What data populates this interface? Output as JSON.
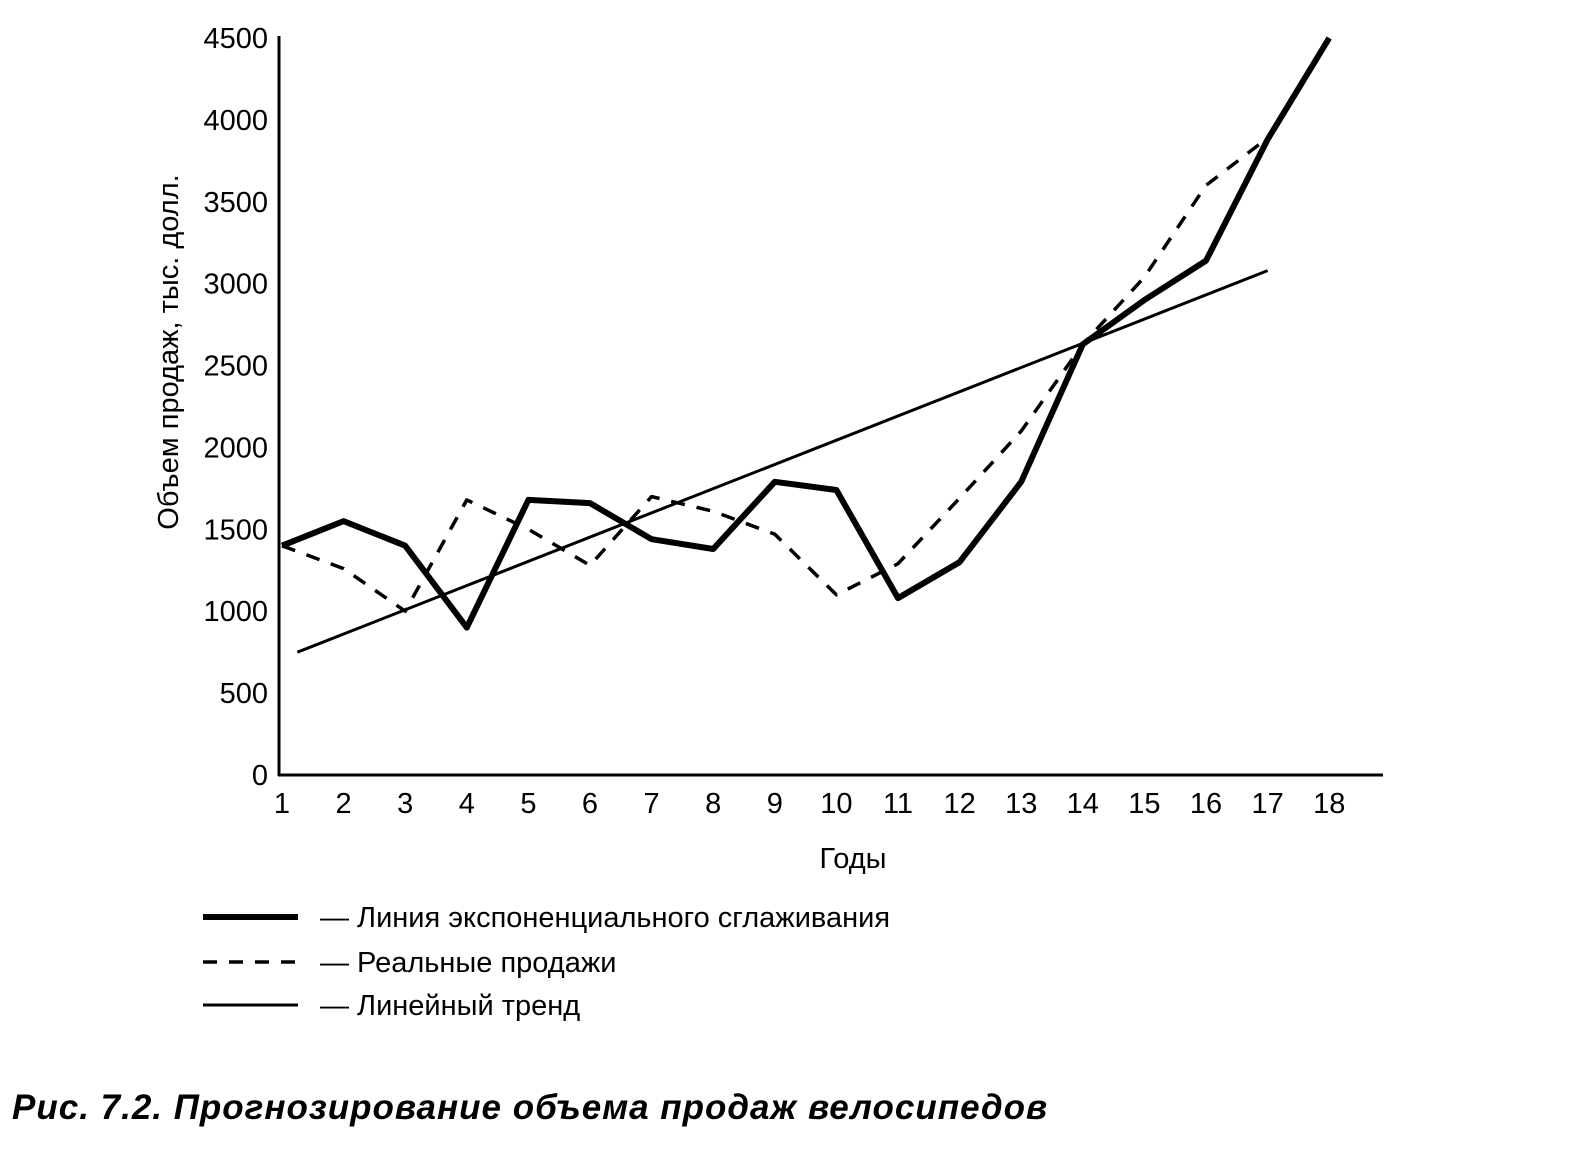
{
  "chart_data": {
    "type": "line",
    "title": "Рис. 7.2. Прогнозирование объема продаж велосипедов",
    "xlabel": "Годы",
    "ylabel": "Объем продаж, тыс. долл.",
    "ylim": [
      0,
      4500
    ],
    "yticks": [
      "0",
      "500",
      "1000",
      "1500",
      "2000",
      "2500",
      "3000",
      "3500",
      "4000",
      "4500"
    ],
    "ytick_values": [
      0,
      500,
      1000,
      1500,
      2000,
      2500,
      3000,
      3500,
      4000,
      4500
    ],
    "x": [
      1,
      2,
      3,
      4,
      5,
      6,
      7,
      8,
      9,
      10,
      11,
      12,
      13,
      14,
      15,
      16,
      17,
      18
    ],
    "xticks": [
      "1",
      "2",
      "3",
      "4",
      "5",
      "6",
      "7",
      "8",
      "9",
      "10",
      "11",
      "12",
      "13",
      "14",
      "15",
      "16",
      "17",
      "18"
    ],
    "grid": false,
    "legend_placement": "bottom",
    "series": [
      {
        "name": "— Линия экспоненциального сглаживания",
        "style": "thick",
        "x": [
          1,
          2,
          3,
          4,
          5,
          6,
          7,
          8,
          9,
          10,
          11,
          12,
          13,
          14,
          15,
          16,
          17,
          18
        ],
        "values": [
          1400,
          1550,
          1400,
          900,
          1680,
          1660,
          1440,
          1380,
          1790,
          1740,
          1080,
          1300,
          1790,
          2630,
          2900,
          3140,
          3880,
          4500
        ]
      },
      {
        "name": "— Реальные продажи",
        "style": "dashed",
        "x": [
          1,
          2,
          3,
          4,
          5,
          6,
          7,
          8,
          9,
          10,
          11,
          12,
          13,
          14,
          15,
          16,
          17
        ],
        "values": [
          1400,
          1260,
          1000,
          1680,
          1500,
          1280,
          1700,
          1610,
          1470,
          1100,
          1290,
          1690,
          2100,
          2630,
          3040,
          3600,
          3890
        ]
      },
      {
        "name": "— Линейный тренд",
        "style": "thin",
        "x": [
          1.25,
          17
        ],
        "values": [
          750,
          3080
        ]
      }
    ]
  }
}
